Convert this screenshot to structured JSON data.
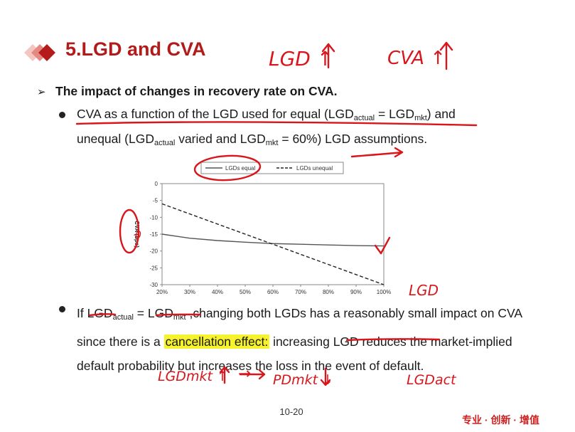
{
  "slide": {
    "title": "5.LGD and CVA",
    "heading": "The impact of changes in recovery rate on CVA.",
    "bullet1": {
      "p1": "CVA as a function of the LGD used for equal (LGD",
      "sub1": "actual",
      "p2": " = LGD",
      "sub2": "mkt",
      "p3": ") and",
      "l2p1": "unequal (LGD",
      "l2sub1": "actual",
      "l2p2": " varied and LGD",
      "l2sub2": "mkt",
      "l2p3": " = 60%) LGD assumptions."
    },
    "bullet2": {
      "p1": "If LGD",
      "sub1": "actual",
      "p2": " = LGD",
      "sub2": "mkt",
      "p3": " ,changing both LGDs has a reasonably small impact on CVA since there is a ",
      "highlight": "cancellation effect:",
      "p4": " increasing LGD reduces the market-implied default probability but increases the loss in the event of default."
    },
    "page_number": "10-20",
    "footer_brand": "专业 · 创新 · 增值"
  },
  "chart_data": {
    "type": "line",
    "x": [
      "20%",
      "30%",
      "40%",
      "50%",
      "60%",
      "70%",
      "80%",
      "90%",
      "100%"
    ],
    "series": [
      {
        "name": "LGDs equal",
        "style": "solid",
        "color": "#555555",
        "values": [
          -15,
          -16.2,
          -16.9,
          -17.4,
          -17.8,
          -18.0,
          -18.2,
          -18.4,
          -18.5
        ]
      },
      {
        "name": "LGDs unequal",
        "style": "dashed",
        "color": "#222222",
        "values": [
          -6,
          -9,
          -12,
          -15,
          -18,
          -21,
          -24,
          -27,
          -30
        ]
      }
    ],
    "ylabel": "CVA (bps)",
    "ylim": [
      -30,
      0
    ],
    "yticks": [
      "0",
      "-5",
      "-10",
      "-15",
      "-20",
      "-25",
      "-30"
    ],
    "legend_position": "top"
  },
  "annotations": {
    "lgd_up": "LGD ↑",
    "cva_up": "CVA ↑",
    "lgd_axis": "LGD",
    "zero_mark": "0",
    "lgd_mkt_up": "LGDmkt ↑",
    "arrow": "→",
    "pd_mkt_down": "PDmkt ↓",
    "lgd_act": "LGDact",
    "ink_color": "#d8161b"
  }
}
